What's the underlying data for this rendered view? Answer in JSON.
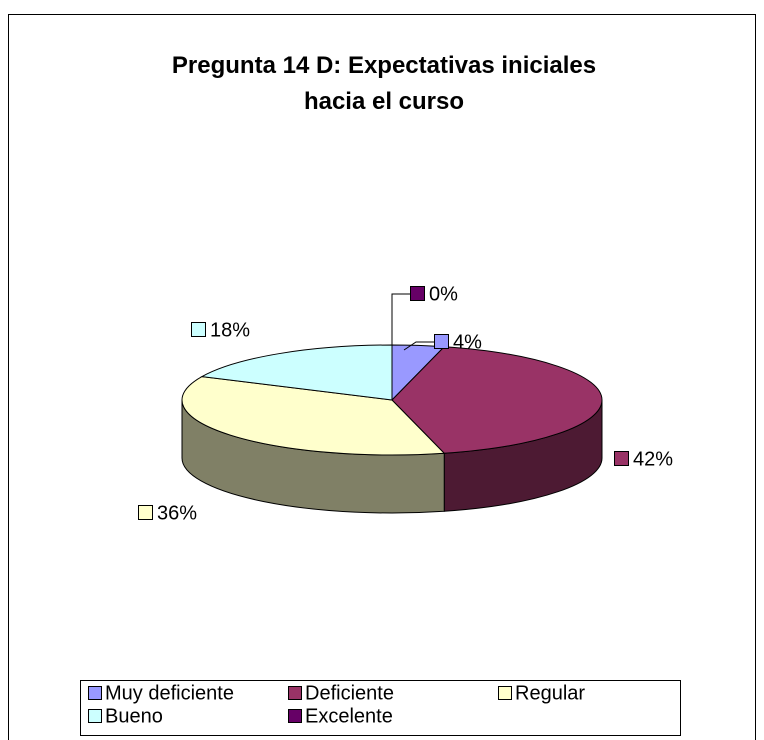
{
  "chart_data": {
    "type": "pie",
    "title": "Pregunta 14 D: Expectativas iniciales hacia el curso",
    "categories": [
      "Muy deficiente",
      "Deficiente",
      "Regular",
      "Bueno",
      "Excelente"
    ],
    "values": [
      4,
      42,
      36,
      18,
      0
    ],
    "value_labels": [
      "4%",
      "42%",
      "36%",
      "18%",
      "0%"
    ],
    "colors": [
      "#9999ff",
      "#993366",
      "#ffffcc",
      "#ccffff",
      "#660066"
    ],
    "legend": "bottom"
  }
}
